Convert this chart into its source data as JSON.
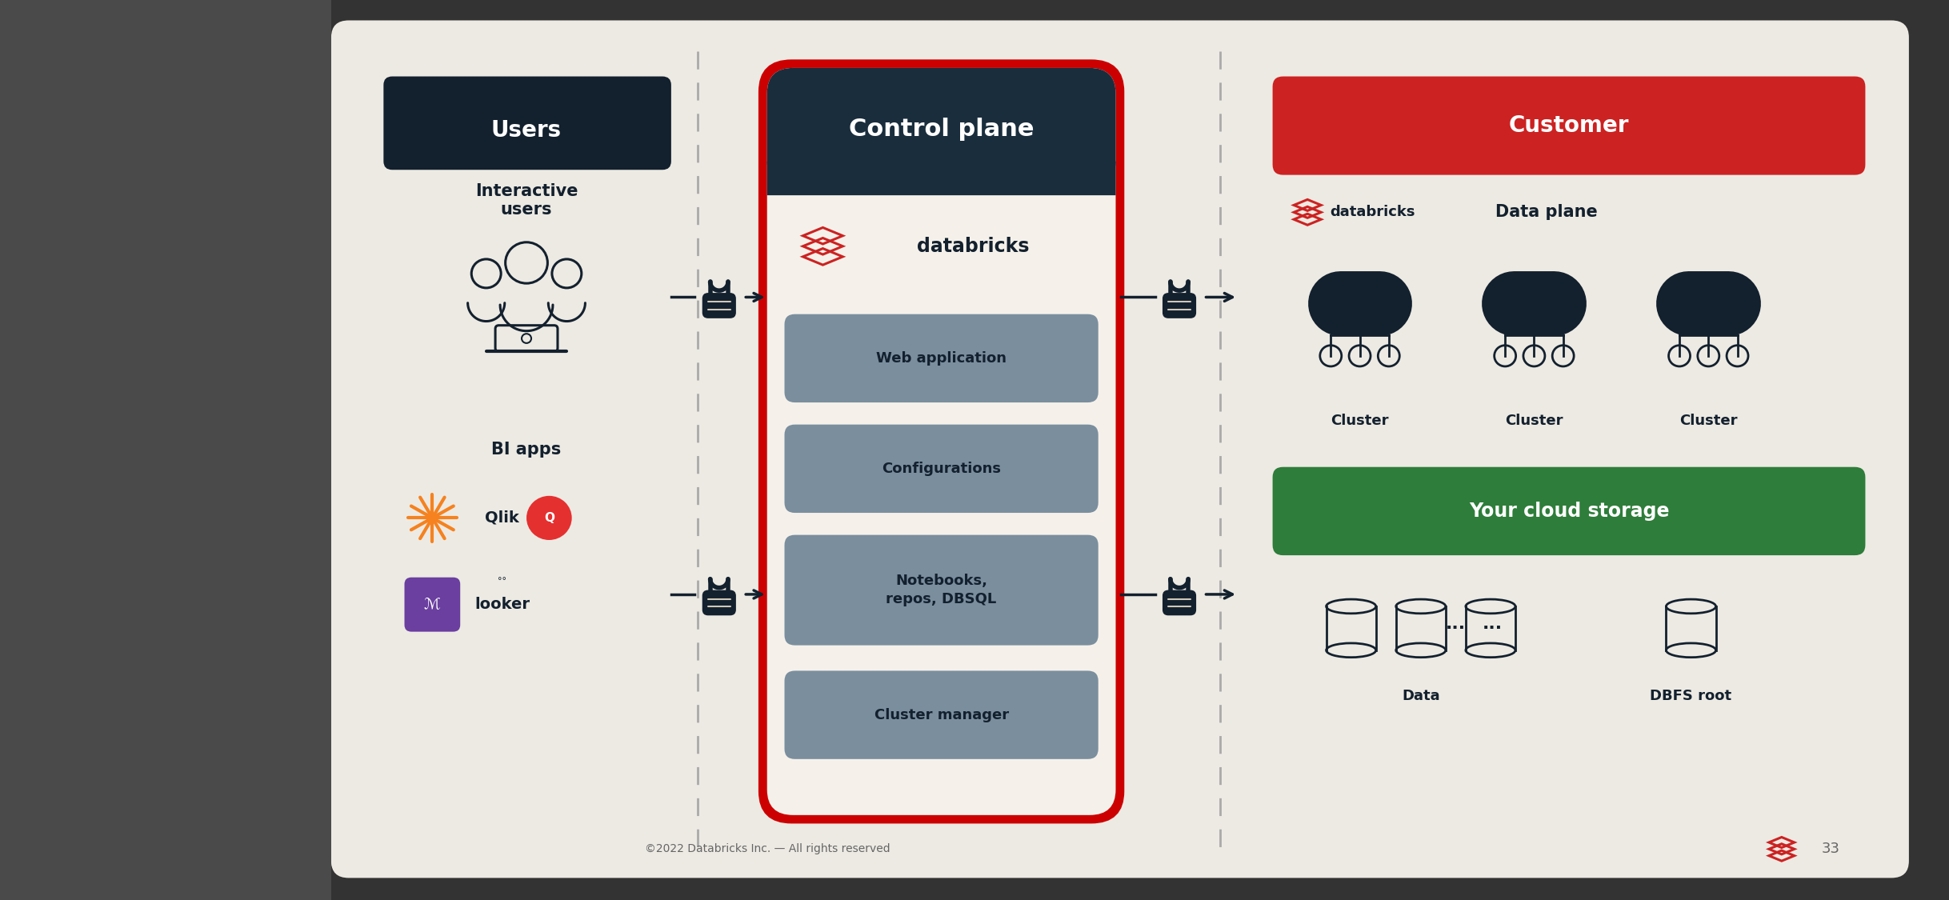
{
  "bg_color": "#edeae3",
  "slide_bg": "#edeae3",
  "dark_bar": "#4a4a4a",
  "title": "Control plane",
  "title_bg": "#1a2d3d",
  "title_text_color": "#ffffff",
  "control_plane_border": "#cc0000",
  "control_plane_bg": "#f5f1ea",
  "users_box_bg": "#13202e",
  "users_text": "Users",
  "users_text_color": "#ffffff",
  "interactive_users_text": "Interactive\nusers",
  "bi_apps_text": "BI apps",
  "customer_box_bg": "#cc2222",
  "customer_text": "Customer",
  "data_plane_text": "Data plane",
  "your_storage_bg": "#2e7d3a",
  "your_storage_text": "Your cloud storage",
  "control_items": [
    "Web application",
    "Configurations",
    "Notebooks,\nrepos, DBSQL",
    "Cluster manager"
  ],
  "control_items_bg": "#7a8e9e",
  "cluster_labels": [
    "Cluster",
    "Cluster",
    "Cluster"
  ],
  "databricks_text": "databricks",
  "databricks_color": "#cc2222",
  "footer_text": "©2022 Databricks Inc. — All rights reserved",
  "page_num": "33",
  "dark_color": "#13202e",
  "arrow_color": "#13202e",
  "dashed_color": "#aaaaaa",
  "qlik_color": "#f5821f",
  "qlik_q_bg": "#e53030",
  "looker_bg": "#6a3fa0"
}
